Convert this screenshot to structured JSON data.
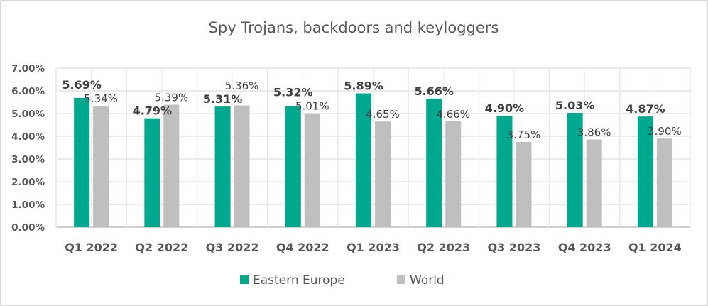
{
  "chart_data": {
    "type": "bar",
    "title": "Spy Trojans, backdoors and keyloggers",
    "xlabel": "",
    "ylabel": "",
    "categories": [
      "Q1 2022",
      "Q2 2022",
      "Q3 2022",
      "Q4 2022",
      "Q1 2023",
      "Q2 2023",
      "Q3 2023",
      "Q4 2023",
      "Q1 2024"
    ],
    "series": [
      {
        "name": "Eastern Europe",
        "color": "#00A88E",
        "values": [
          5.69,
          4.79,
          5.31,
          5.32,
          5.89,
          5.66,
          4.9,
          5.03,
          4.87
        ],
        "labels": [
          "5.69%",
          "4.79%",
          "5.31%",
          "5.32%",
          "5.89%",
          "5.66%",
          "4.90%",
          "5.03%",
          "4.87%"
        ]
      },
      {
        "name": "World",
        "color": "#BFBFBF",
        "values": [
          5.34,
          5.39,
          5.36,
          5.01,
          4.65,
          4.66,
          3.75,
          3.86,
          3.9
        ],
        "labels": [
          "5.34%",
          "5.39%",
          "5.36%",
          "5.01%",
          "4.65%",
          "4.66%",
          "3.75%",
          "3.86%",
          "3.90%"
        ]
      }
    ],
    "ylim": [
      0,
      7
    ],
    "yticks": [
      "0.00%",
      "1.00%",
      "2.00%",
      "3.00%",
      "4.00%",
      "5.00%",
      "6.00%",
      "7.00%"
    ],
    "grid": true,
    "legend_position": "bottom"
  }
}
